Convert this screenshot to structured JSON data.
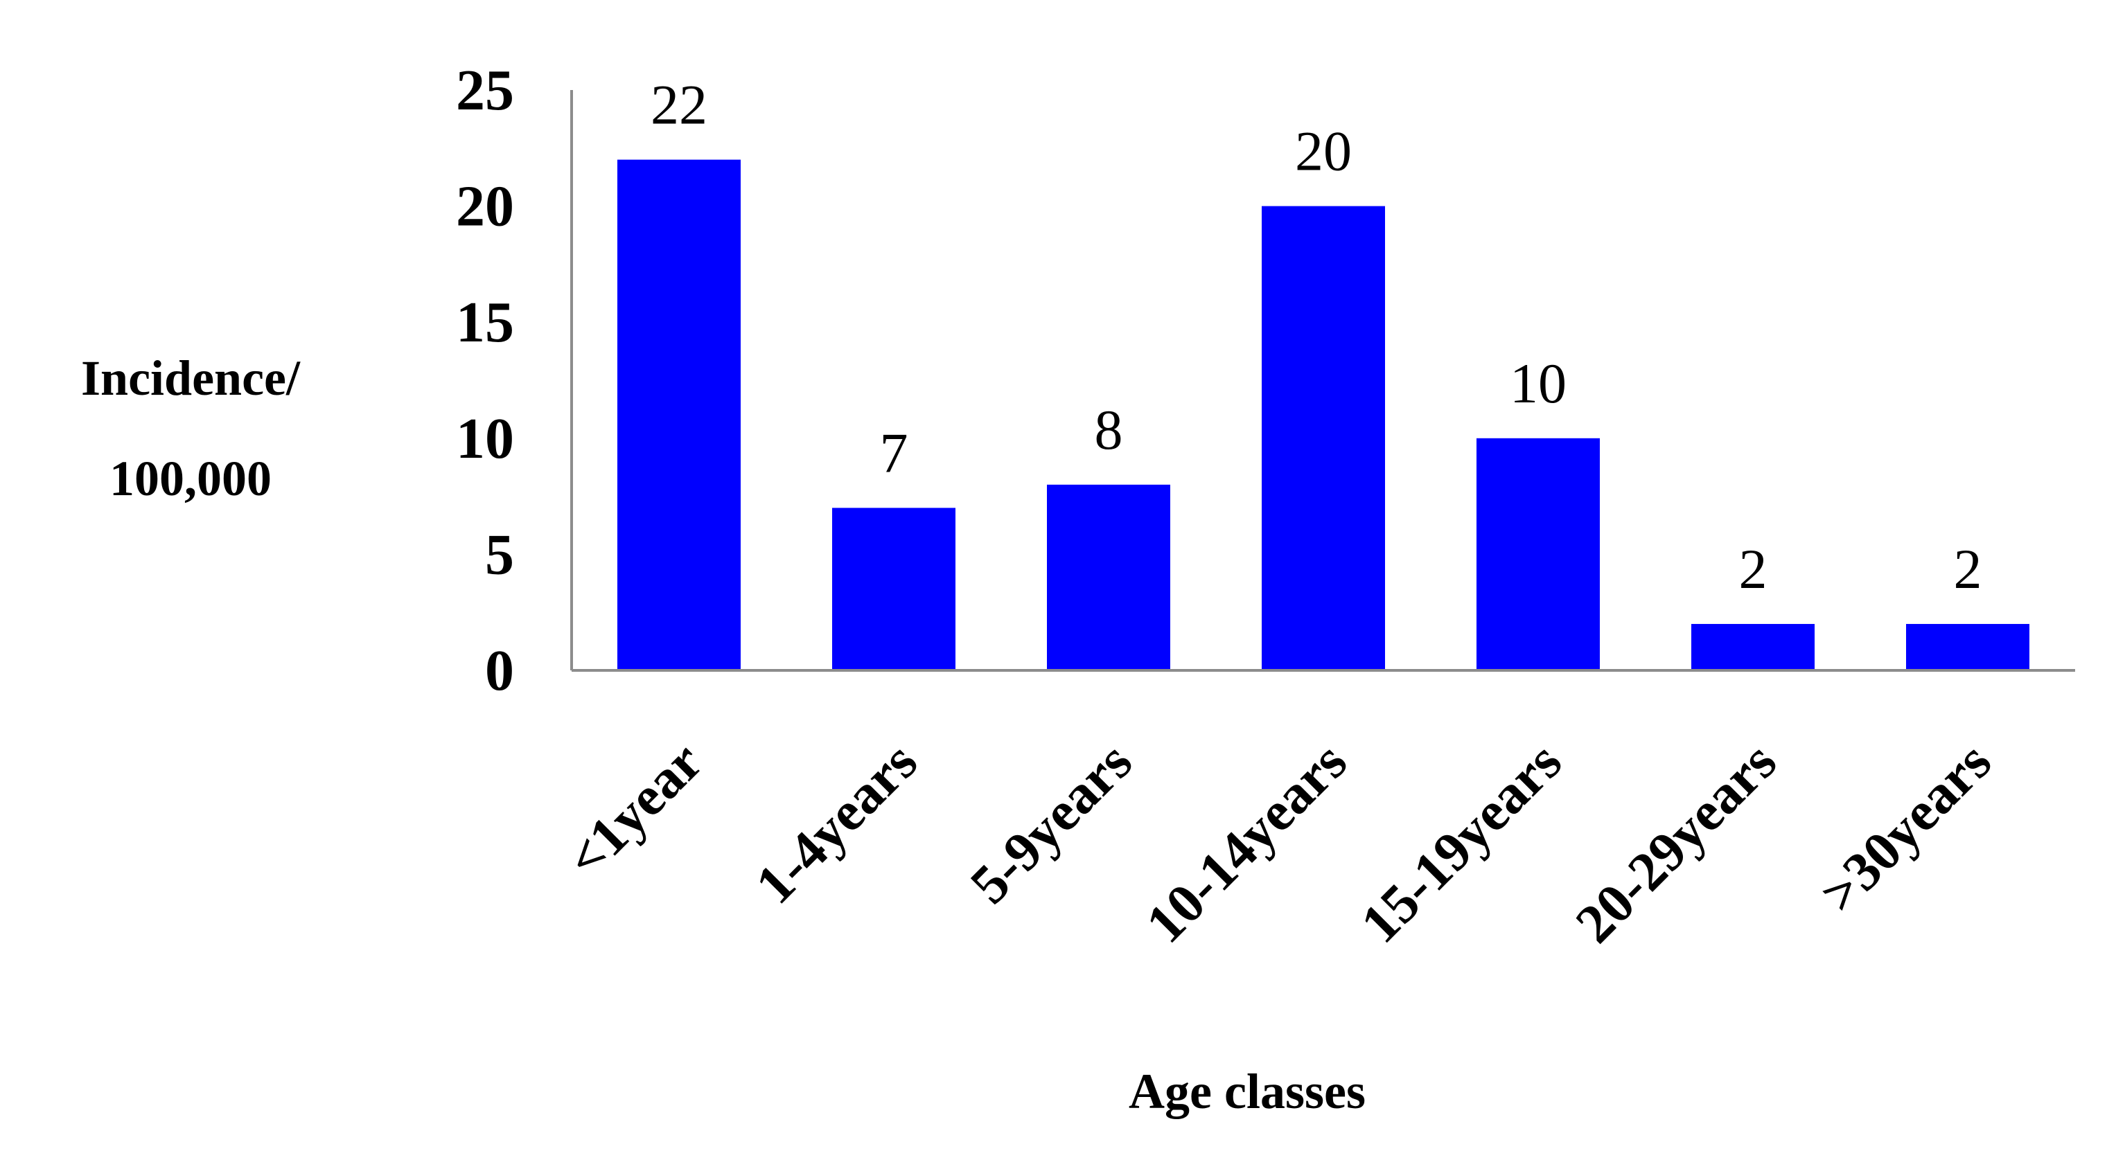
{
  "chart_data": {
    "type": "bar",
    "categories": [
      "<1year",
      "1-4years",
      "5-9years",
      "10-14years",
      "15-19years",
      "20-29years",
      ">30years"
    ],
    "values": [
      22,
      7,
      8,
      20,
      10,
      2,
      2
    ],
    "data_labels": [
      "22",
      "7",
      "8",
      "20",
      "10",
      "2",
      "2"
    ],
    "title": "",
    "xlabel": "Age classes",
    "ylabel_lines": [
      "Incidence/",
      "100,000"
    ],
    "ylim": [
      0,
      25
    ],
    "yticks": [
      0,
      5,
      10,
      15,
      20,
      25
    ],
    "ytick_labels": [
      "0",
      "5",
      "10",
      "15",
      "20",
      "25"
    ],
    "grid": false,
    "legend": "none",
    "bar_color": "#0000FF",
    "axis_color": "#8C8C8C"
  }
}
